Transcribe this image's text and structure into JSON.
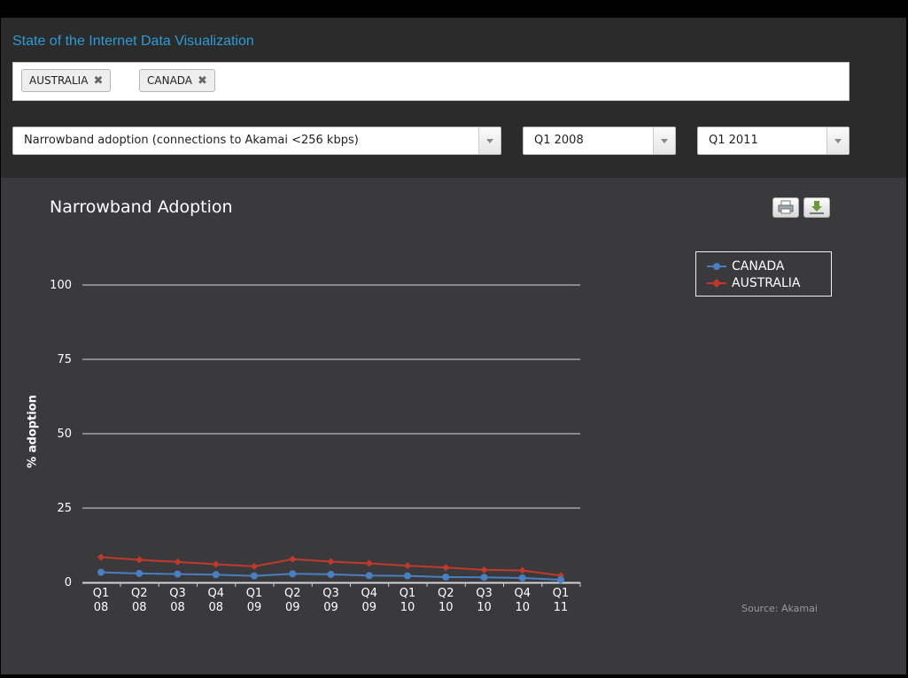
{
  "app": {
    "title": "State of the Internet Data Visualization"
  },
  "filters": {
    "countries": [
      {
        "label": "AUSTRALIA",
        "remove": "✖"
      },
      {
        "label": "CANADA",
        "remove": "✖"
      }
    ],
    "metric": "Narrowband adoption (connections to Akamai <256 kbps)",
    "start": "Q1 2008",
    "end": "Q1 2011"
  },
  "toolbar": {
    "print_icon": "print-icon",
    "download_icon": "download-icon"
  },
  "chart_data": {
    "type": "line",
    "title": "Narrowband Adoption",
    "ylabel": "% adoption",
    "xlabel": "",
    "ylim": [
      0,
      100
    ],
    "yticks": [
      0,
      25,
      50,
      75,
      100
    ],
    "grid": true,
    "legend_position": "top-right",
    "categories": [
      "Q1 08",
      "Q2 08",
      "Q3 08",
      "Q4 08",
      "Q1 09",
      "Q2 09",
      "Q3 09",
      "Q4 09",
      "Q1 10",
      "Q2 10",
      "Q3 10",
      "Q4 10",
      "Q1 11"
    ],
    "series": [
      {
        "name": "CANADA",
        "color": "#4a7fc1",
        "marker": "circle",
        "values": [
          3.4,
          3.0,
          2.8,
          2.6,
          2.2,
          2.9,
          2.7,
          2.3,
          2.2,
          1.8,
          1.7,
          1.5,
          0.9
        ]
      },
      {
        "name": "AUSTRALIA",
        "color": "#c0392b",
        "marker": "diamond",
        "values": [
          8.5,
          7.6,
          6.9,
          6.1,
          5.4,
          7.8,
          7.0,
          6.4,
          5.6,
          5.0,
          4.2,
          4.0,
          2.3
        ]
      }
    ],
    "source": "Source: Akamai"
  }
}
